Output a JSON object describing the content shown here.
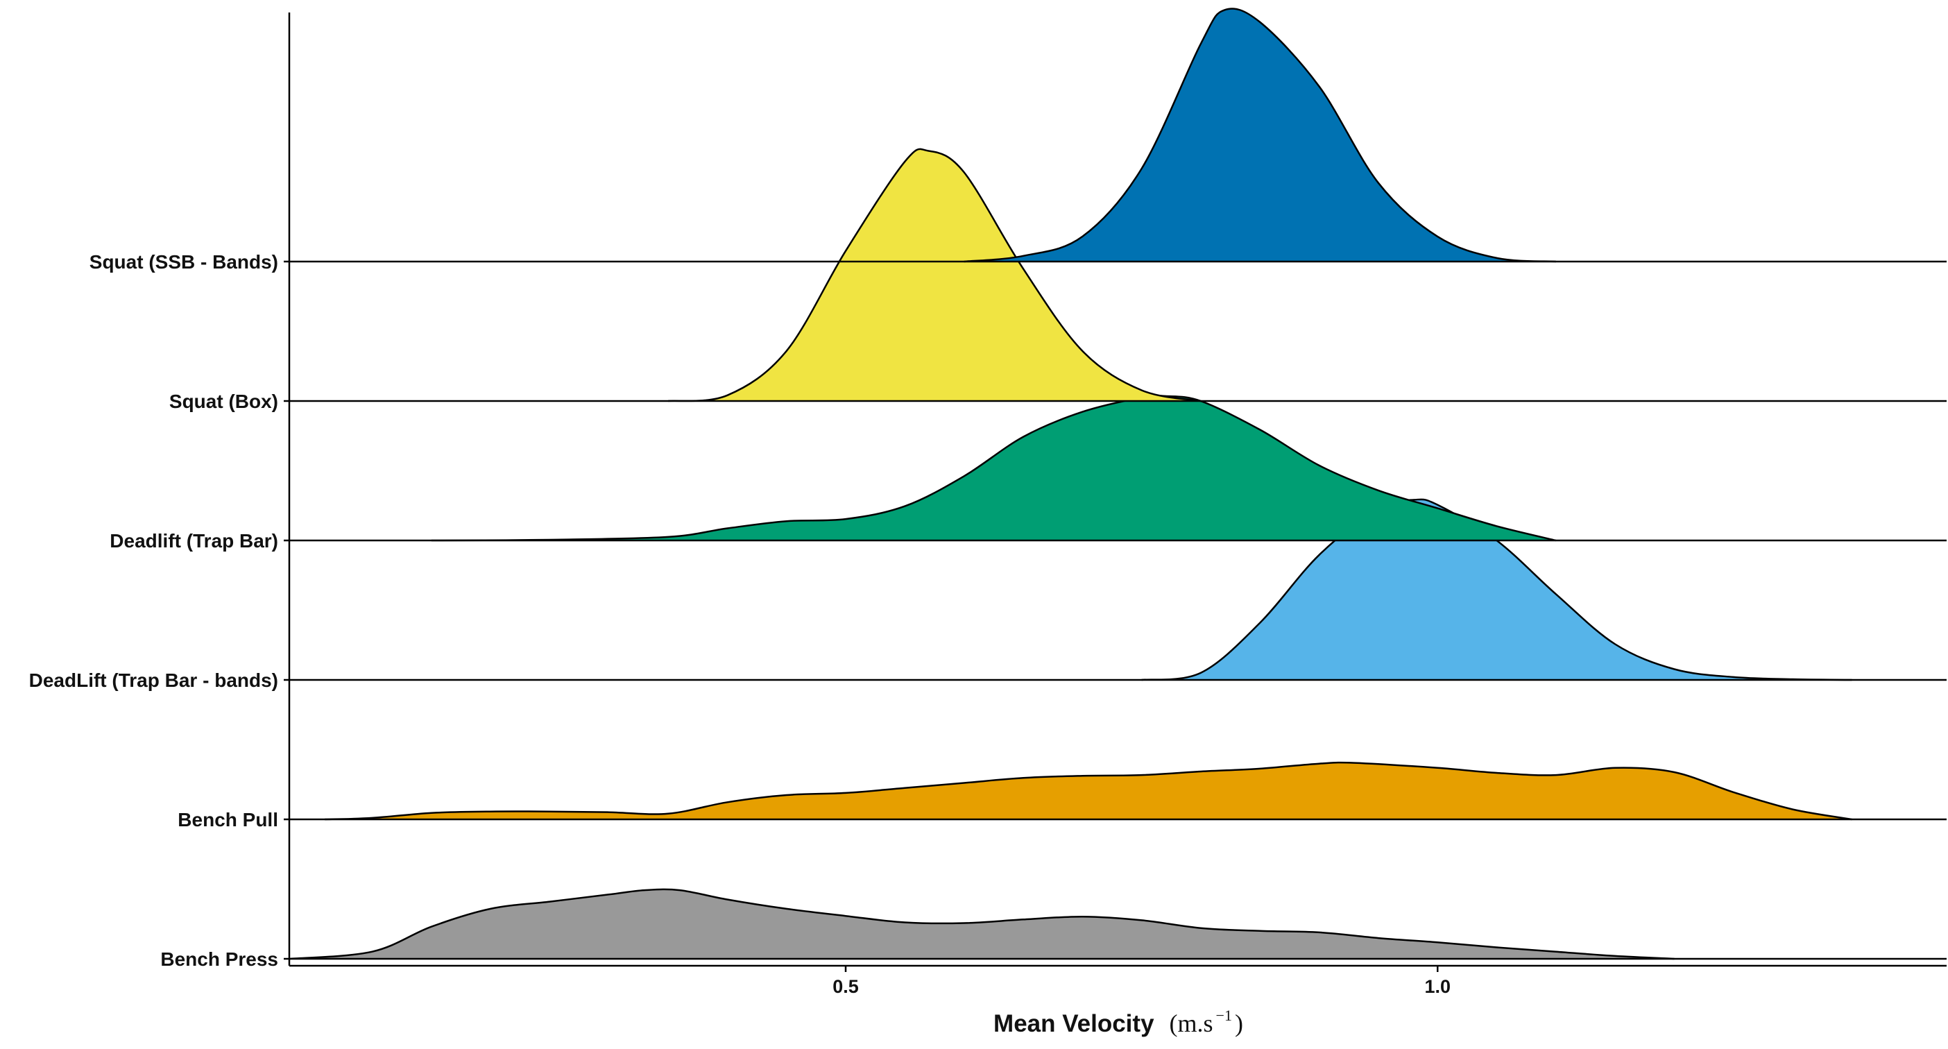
{
  "chart_data": {
    "type": "ridgeline",
    "title": "",
    "xlabel": "Mean Velocity",
    "xlabel_unit": "(m.s",
    "xlabel_unit_exp": "−1",
    "xlabel_unit_close": ")",
    "ylabel": "",
    "xlim": [
      0.03,
      1.43
    ],
    "x_ticks": [
      {
        "value": 0.5,
        "label": "0.5"
      },
      {
        "value": 1.0,
        "label": "1.0"
      }
    ],
    "grid": false,
    "legend": "none",
    "categories": [
      "Bench Press",
      "Bench Pull",
      "DeadLift (Trap Bar - bands)",
      "Deadlift (Trap Bar)",
      "Squat (Box)",
      "Squat (SSB - Bands)"
    ],
    "series": [
      {
        "label": "Bench Press",
        "color": "#999999",
        "x": [
          0.03,
          0.1,
          0.15,
          0.2,
          0.25,
          0.3,
          0.33,
          0.36,
          0.4,
          0.45,
          0.5,
          0.55,
          0.6,
          0.65,
          0.7,
          0.75,
          0.8,
          0.85,
          0.9,
          0.95,
          1.0,
          1.05,
          1.1,
          1.15,
          1.2
        ],
        "density": [
          0.0,
          0.1,
          0.45,
          0.7,
          0.8,
          0.9,
          0.96,
          0.96,
          0.83,
          0.7,
          0.6,
          0.51,
          0.5,
          0.55,
          0.59,
          0.54,
          0.43,
          0.39,
          0.37,
          0.29,
          0.23,
          0.16,
          0.1,
          0.04,
          0.0
        ]
      },
      {
        "label": "Bench Pull",
        "color": "#E69F00",
        "x": [
          0.06,
          0.1,
          0.15,
          0.2,
          0.25,
          0.3,
          0.35,
          0.4,
          0.45,
          0.5,
          0.55,
          0.6,
          0.65,
          0.7,
          0.75,
          0.8,
          0.85,
          0.9,
          0.93,
          1.0,
          1.05,
          1.1,
          1.15,
          1.2,
          1.25,
          1.3,
          1.35
        ],
        "density": [
          0.0,
          0.02,
          0.09,
          0.11,
          0.11,
          0.1,
          0.08,
          0.24,
          0.34,
          0.37,
          0.44,
          0.51,
          0.58,
          0.61,
          0.62,
          0.67,
          0.71,
          0.78,
          0.79,
          0.72,
          0.65,
          0.62,
          0.72,
          0.66,
          0.38,
          0.14,
          0.0
        ]
      },
      {
        "label": "DeadLift (Trap Bar - bands)",
        "color": "#56B4E9",
        "x": [
          0.75,
          0.8,
          0.85,
          0.9,
          0.95,
          0.98,
          1.0,
          1.05,
          1.1,
          1.15,
          1.2,
          1.25,
          1.3,
          1.35
        ],
        "density": [
          0.0,
          0.1,
          0.8,
          1.75,
          2.4,
          2.52,
          2.45,
          1.95,
          1.2,
          0.5,
          0.15,
          0.04,
          0.01,
          0.0
        ]
      },
      {
        "label": "Deadlift (Trap Bar)",
        "color": "#009E73",
        "x": [
          0.15,
          0.25,
          0.35,
          0.4,
          0.45,
          0.5,
          0.55,
          0.6,
          0.65,
          0.7,
          0.75,
          0.77,
          0.8,
          0.85,
          0.9,
          0.95,
          1.0,
          1.05,
          1.1
        ],
        "density": [
          0.0,
          0.01,
          0.05,
          0.17,
          0.27,
          0.3,
          0.48,
          0.9,
          1.45,
          1.8,
          2.0,
          2.02,
          1.95,
          1.55,
          1.05,
          0.7,
          0.45,
          0.2,
          0.0
        ]
      },
      {
        "label": "Squat (Box)",
        "color": "#F0E442",
        "x": [
          0.35,
          0.4,
          0.45,
          0.5,
          0.55,
          0.57,
          0.6,
          0.65,
          0.7,
          0.75,
          0.8
        ],
        "density": [
          0.0,
          0.08,
          0.7,
          2.1,
          3.35,
          3.5,
          3.2,
          1.85,
          0.7,
          0.15,
          0.0
        ]
      },
      {
        "label": "Squat (SSB - Bands)",
        "color": "#0072B2",
        "x": [
          0.6,
          0.65,
          0.7,
          0.75,
          0.8,
          0.82,
          0.85,
          0.9,
          0.95,
          1.0,
          1.05,
          1.1
        ],
        "density": [
          0.0,
          0.08,
          0.35,
          1.3,
          3.05,
          3.52,
          3.35,
          2.45,
          1.1,
          0.35,
          0.05,
          0.0
        ]
      }
    ]
  }
}
